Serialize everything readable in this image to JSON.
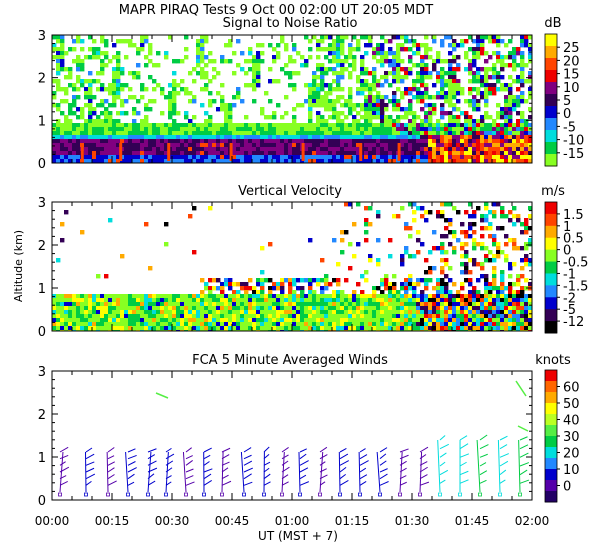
{
  "header": {
    "title": "MAPR PIRAQ Tests   9 Oct 00   02:00 UT   20:05   MDT"
  },
  "shared_x": {
    "label": "UT  (MST + 7)",
    "range_minutes": [
      0,
      120
    ],
    "ticks": [
      {
        "value": 0,
        "label": "00:00"
      },
      {
        "value": 15,
        "label": "00:15"
      },
      {
        "value": 30,
        "label": "00:30"
      },
      {
        "value": 45,
        "label": "00:45"
      },
      {
        "value": 60,
        "label": "01:00"
      },
      {
        "value": 75,
        "label": "01:15"
      },
      {
        "value": 90,
        "label": "01:30"
      },
      {
        "value": 105,
        "label": "01:45"
      },
      {
        "value": 120,
        "label": "02:00"
      }
    ]
  },
  "shared_y": {
    "label": "Altitude (km)",
    "ticks": [
      "0",
      "1",
      "2",
      "3"
    ]
  },
  "chart_data": [
    {
      "type": "heatmap",
      "title": "Signal to Noise Ratio",
      "ylim": [
        0,
        3
      ],
      "yticks": [
        "0",
        "1",
        "2",
        "3"
      ],
      "colorbar": {
        "unit": "dB",
        "labels": [
          "25",
          "20",
          "15",
          "10",
          "5",
          "0",
          "-5",
          "-10",
          "-15"
        ],
        "colors": [
          "#ffff00",
          "#ffaa00",
          "#ff4400",
          "#ee0000",
          "#800080",
          "#330055",
          "#0000cc",
          "#2288ff",
          "#00dddd",
          "#00cc44",
          "#88ff22"
        ]
      }
    },
    {
      "type": "heatmap",
      "title": "Vertical Velocity",
      "ylim": [
        0,
        3
      ],
      "yticks": [
        "0",
        "1",
        "2",
        "3"
      ],
      "colorbar": {
        "unit": "m/s",
        "labels": [
          "1.5",
          "1",
          "0.5",
          "0",
          "-0.5",
          "-1",
          "-1.5",
          "-2",
          "-5",
          "-12"
        ],
        "colors": [
          "#ee0000",
          "#ff4400",
          "#ffaa00",
          "#ffff00",
          "#88ff22",
          "#00cc44",
          "#00dddd",
          "#2288ff",
          "#0000cc",
          "#330055",
          "#000000"
        ]
      }
    },
    {
      "type": "scatter",
      "title": "FCA 5 Minute Averaged Winds",
      "ylim": [
        0,
        3
      ],
      "yticks": [
        "0",
        "1",
        "2",
        "3"
      ],
      "colorbar": {
        "unit": "knots",
        "labels": [
          "60",
          "50",
          "40",
          "30",
          "20",
          "10",
          "0"
        ],
        "colors": [
          "#ee0000",
          "#ff6600",
          "#ffaa00",
          "#ffff00",
          "#bbff22",
          "#55ee44",
          "#00cc44",
          "#00dddd",
          "#2288ff",
          "#0000cc",
          "#5500aa",
          "#220066"
        ]
      },
      "profiles_minutes": [
        2,
        8.5,
        14,
        19,
        24,
        28.5,
        33.5,
        38,
        42.5,
        48,
        53,
        57.5,
        62,
        67,
        72,
        77,
        82,
        87,
        92,
        97,
        102,
        107,
        112,
        117
      ]
    }
  ]
}
